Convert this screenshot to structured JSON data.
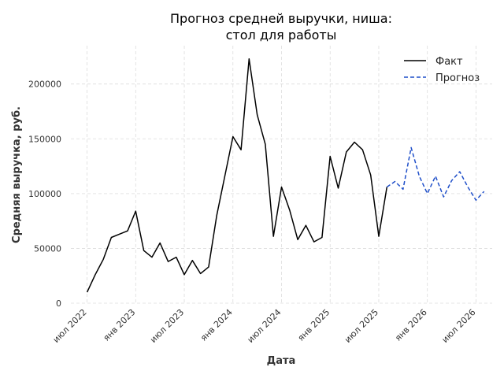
{
  "chart_data": {
    "type": "line",
    "title_line1": "Прогноз средней выручки, ниша:",
    "title_line2": "стол для работы",
    "xlabel": "Дата",
    "ylabel": "Средняя выручка, руб.",
    "ylim": [
      0,
      235000
    ],
    "yticks": [
      0,
      50000,
      100000,
      150000,
      200000
    ],
    "ytick_labels": [
      "0",
      "50000",
      "100000",
      "150000",
      "200000"
    ],
    "xticks": [
      "2022-07",
      "2023-01",
      "2023-07",
      "2024-01",
      "2024-07",
      "2025-01",
      "2025-07",
      "2026-01",
      "2026-07"
    ],
    "xtick_labels": [
      "июл 2022",
      "янв 2023",
      "июл 2023",
      "янв 2024",
      "июл 2024",
      "янв 2025",
      "июл 2025",
      "янв 2026",
      "июл 2026"
    ],
    "grid": true,
    "legend_position": "top-right",
    "legend": [
      "Факт",
      "Прогноз"
    ],
    "series": [
      {
        "name": "Факт",
        "style": "solid",
        "color": "#000000",
        "x": [
          "2022-07",
          "2022-08",
          "2022-09",
          "2022-10",
          "2022-11",
          "2022-12",
          "2023-01",
          "2023-02",
          "2023-03",
          "2023-04",
          "2023-05",
          "2023-06",
          "2023-07",
          "2023-08",
          "2023-09",
          "2023-10",
          "2023-11",
          "2023-12",
          "2024-01",
          "2024-02",
          "2024-03",
          "2024-04",
          "2024-05",
          "2024-06",
          "2024-07",
          "2024-08",
          "2024-09",
          "2024-10",
          "2024-11",
          "2024-12",
          "2025-01",
          "2025-02",
          "2025-03",
          "2025-04",
          "2025-05",
          "2025-06",
          "2025-07",
          "2025-08"
        ],
        "values": [
          10000,
          26000,
          40000,
          60000,
          63000,
          66000,
          84000,
          48000,
          42000,
          55000,
          38000,
          42000,
          26000,
          39000,
          27000,
          33000,
          80000,
          116000,
          152000,
          140000,
          223000,
          172000,
          145000,
          61000,
          106000,
          85000,
          58000,
          71000,
          56000,
          60000,
          134000,
          105000,
          138000,
          147000,
          140000,
          117000,
          61000,
          106000
        ]
      },
      {
        "name": "Прогноз",
        "style": "dashed",
        "color": "#1f4fc9",
        "x": [
          "2025-08",
          "2025-09",
          "2025-10",
          "2025-11",
          "2025-12",
          "2026-01",
          "2026-02",
          "2026-03",
          "2026-04",
          "2026-05",
          "2026-06",
          "2026-07",
          "2026-08"
        ],
        "values": [
          106000,
          111000,
          104000,
          142000,
          116000,
          100000,
          116000,
          97000,
          112000,
          120000,
          106000,
          94000,
          102000
        ]
      }
    ]
  }
}
